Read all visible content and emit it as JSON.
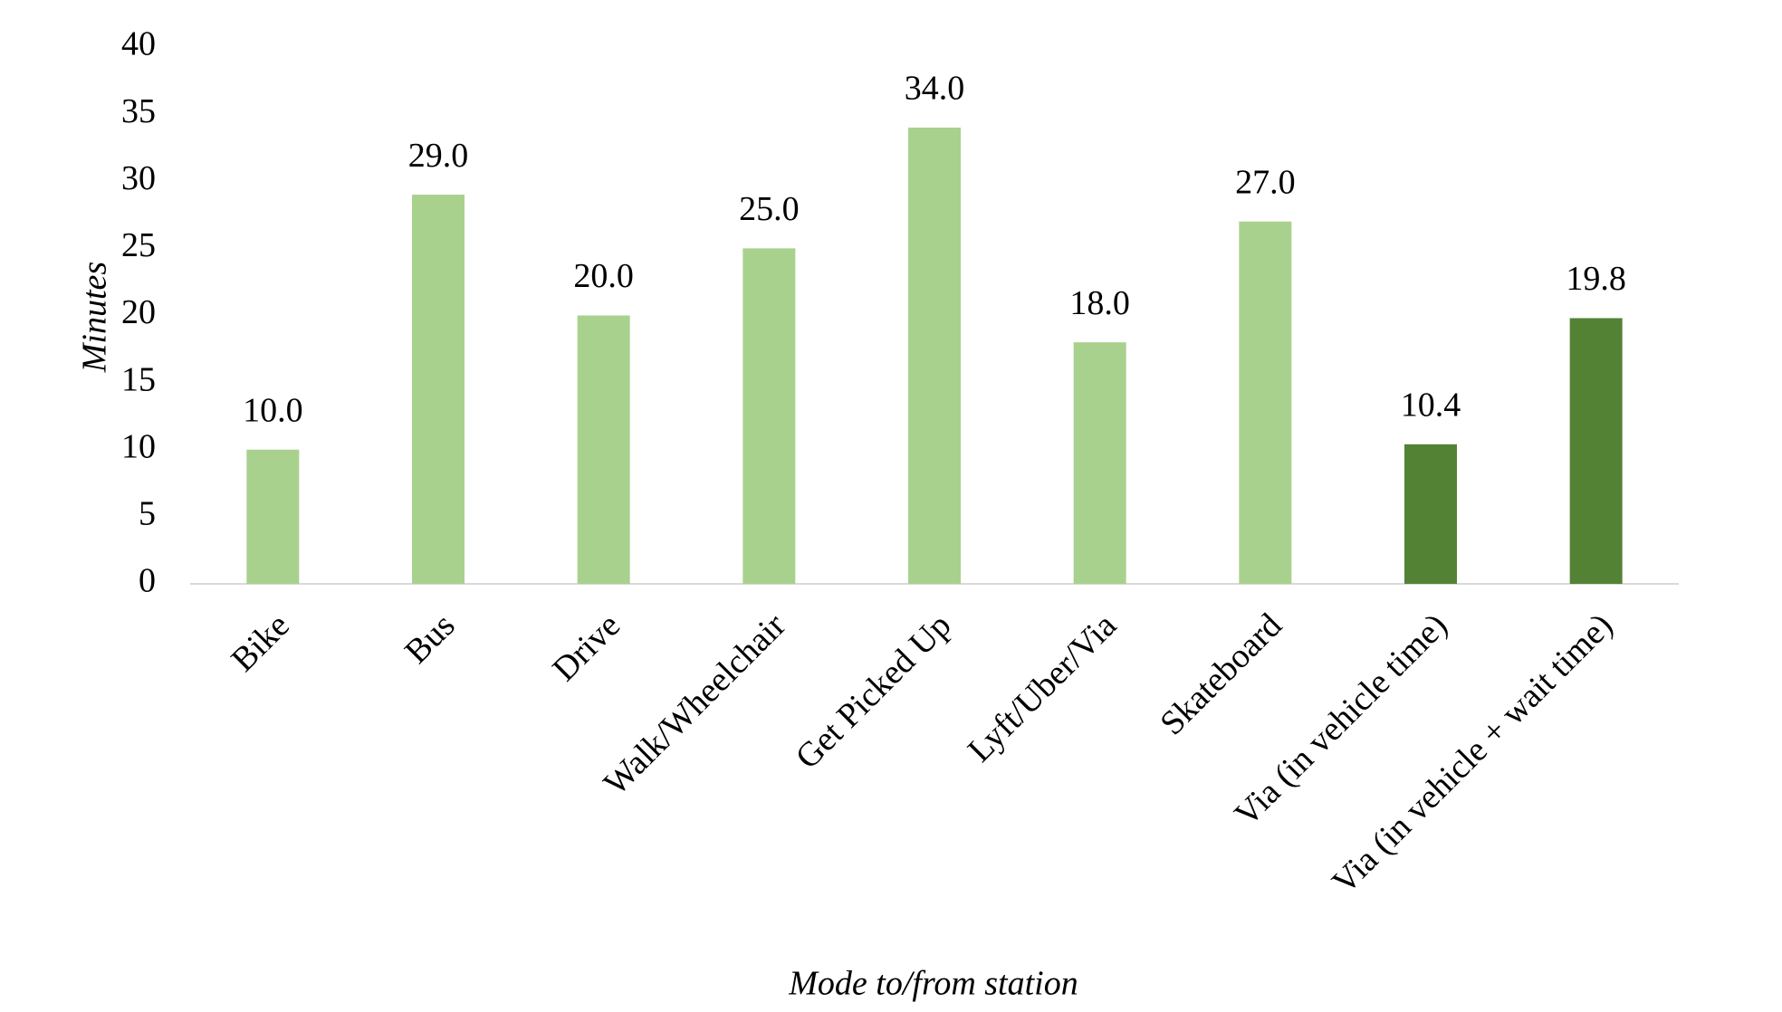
{
  "chart_data": {
    "type": "bar",
    "y_label": "Minutes",
    "x_label": "Mode to/from station",
    "categories": [
      "Bike",
      "Bus",
      "Drive",
      "Walk/Wheelchair",
      "Get Picked Up",
      "Lyft/Uber/Via",
      "Skateboard",
      "Via (in vehicle time)",
      "Via (in vehicle + wait time)"
    ],
    "values": [
      10,
      29,
      20,
      25,
      34,
      18,
      27,
      10.4,
      19.8
    ],
    "value_labels": [
      "10.0",
      "29.0",
      "20.0",
      "25.0",
      "34.0",
      "18.0",
      "27.0",
      "10.4",
      "19.8"
    ],
    "colors": [
      "#a9d18e",
      "#a9d18e",
      "#a9d18e",
      "#a9d18e",
      "#a9d18e",
      "#a9d18e",
      "#a9d18e",
      "#548235",
      "#548235"
    ],
    "ylim": [
      0,
      40
    ],
    "yticks": [
      0,
      5,
      10,
      15,
      20,
      25,
      30,
      35,
      40
    ],
    "grid": false
  }
}
